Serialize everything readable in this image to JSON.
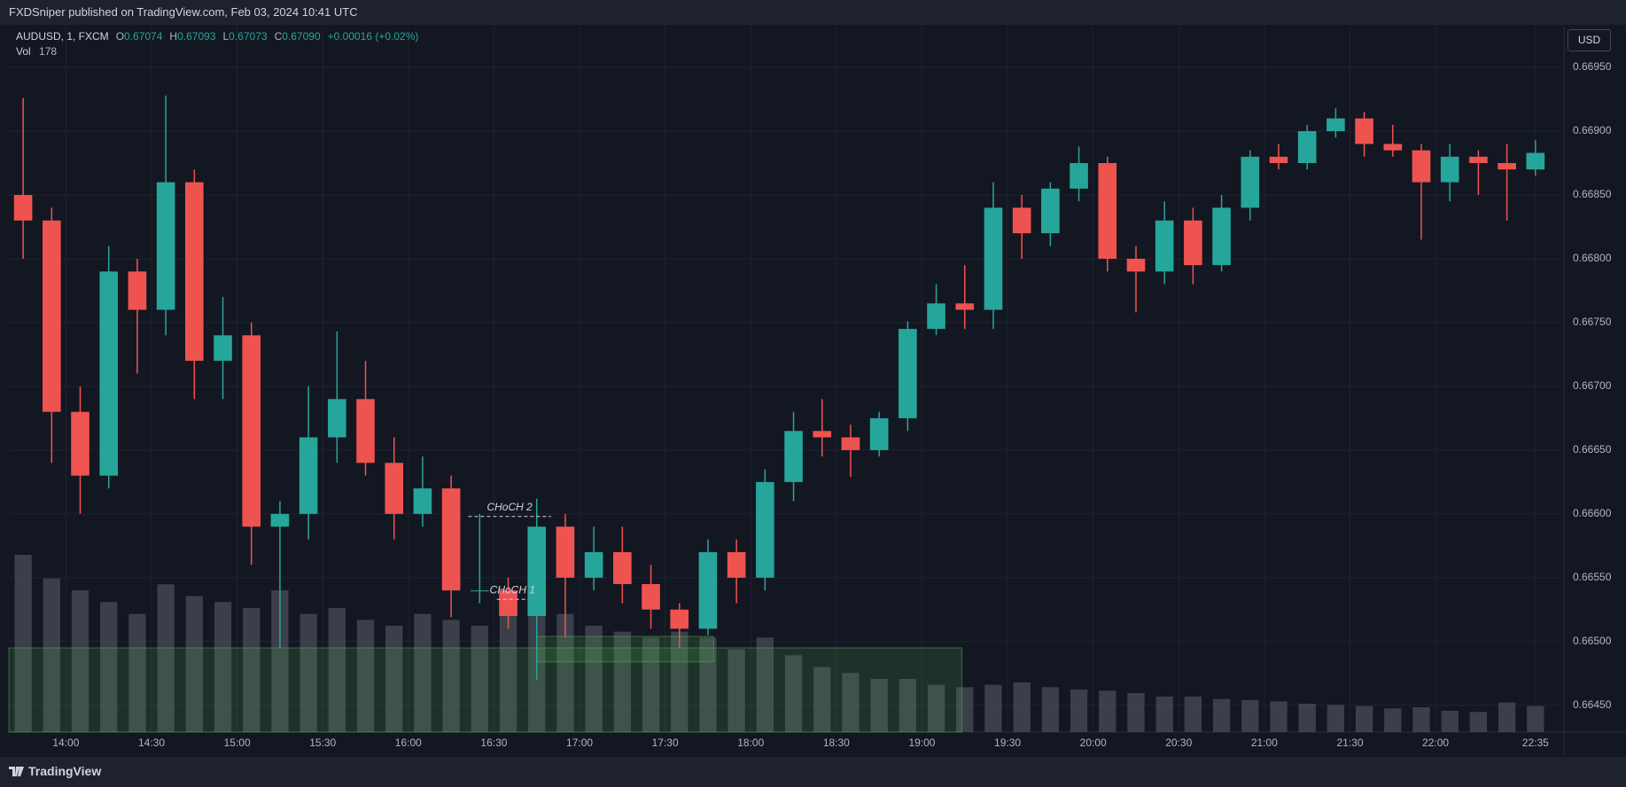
{
  "header": {
    "publisher": "FXDSniper published on TradingView.com, Feb 03, 2024 10:41 UTC"
  },
  "legend": {
    "symbol": "AUDUSD, 1, FXCM",
    "open_label": "O",
    "open": "0.67074",
    "high_label": "H",
    "high": "0.67093",
    "low_label": "L",
    "low": "0.67073",
    "close_label": "C",
    "close": "0.67090",
    "change": "+0.00016 (+0.02%)",
    "volume_label": "Vol",
    "volume": "178"
  },
  "currency": "USD",
  "footer": {
    "brand": "TradingView"
  },
  "chart_data": {
    "type": "candlestick",
    "x": [
      "13:40",
      "13:50",
      "14:00",
      "14:10",
      "14:20",
      "14:30",
      "14:40",
      "14:50",
      "15:00",
      "15:10",
      "15:20",
      "15:30",
      "15:40",
      "15:50",
      "16:00",
      "16:10",
      "16:20",
      "16:30",
      "16:40",
      "16:50",
      "17:00",
      "17:10",
      "17:20",
      "17:30",
      "17:40",
      "17:50",
      "18:00",
      "18:10",
      "18:20",
      "18:30",
      "18:40",
      "18:50",
      "19:00",
      "19:10",
      "19:20",
      "19:30",
      "19:40",
      "19:50",
      "20:00",
      "20:10",
      "20:20",
      "20:30",
      "20:40",
      "20:50",
      "21:00",
      "21:10",
      "21:20",
      "21:30",
      "21:40",
      "21:50",
      "22:00",
      "22:10",
      "22:20",
      "22:30"
    ],
    "open": [
      0.6685,
      0.6683,
      0.6668,
      0.6663,
      0.6679,
      0.6676,
      0.6686,
      0.6672,
      0.6674,
      0.6659,
      0.666,
      0.6666,
      0.6669,
      0.6664,
      0.666,
      0.6662,
      0.6654,
      0.6654,
      0.6652,
      0.6659,
      0.6655,
      0.6657,
      0.66545,
      0.66525,
      0.6651,
      0.6657,
      0.6655,
      0.66625,
      0.66665,
      0.6666,
      0.6665,
      0.66675,
      0.66745,
      0.66765,
      0.6676,
      0.6684,
      0.6682,
      0.66855,
      0.66875,
      0.668,
      0.6679,
      0.6683,
      0.66795,
      0.6684,
      0.6688,
      0.66875,
      0.669,
      0.6691,
      0.6689,
      0.66885,
      0.6686,
      0.6688,
      0.66875,
      0.6687
    ],
    "high": [
      0.66926,
      0.6684,
      0.667,
      0.6681,
      0.668,
      0.66928,
      0.6687,
      0.6677,
      0.6675,
      0.6661,
      0.667,
      0.66743,
      0.6672,
      0.6666,
      0.66645,
      0.6663,
      0.666,
      0.6655,
      0.66612,
      0.666,
      0.6659,
      0.6659,
      0.6656,
      0.6653,
      0.6658,
      0.6658,
      0.66635,
      0.6668,
      0.6669,
      0.6667,
      0.6668,
      0.66751,
      0.6678,
      0.66795,
      0.6686,
      0.6685,
      0.6686,
      0.66888,
      0.6688,
      0.6681,
      0.66845,
      0.6684,
      0.6685,
      0.66885,
      0.6689,
      0.66905,
      0.66918,
      0.66915,
      0.66905,
      0.6689,
      0.6689,
      0.66885,
      0.6689,
      0.66893
    ],
    "low": [
      0.668,
      0.6664,
      0.666,
      0.6662,
      0.6671,
      0.6674,
      0.6669,
      0.6669,
      0.6656,
      0.66495,
      0.6658,
      0.6664,
      0.6663,
      0.6658,
      0.6659,
      0.66519,
      0.6653,
      0.6651,
      0.6647,
      0.66503,
      0.6654,
      0.6653,
      0.6651,
      0.66495,
      0.66505,
      0.6653,
      0.6654,
      0.6661,
      0.66645,
      0.66629,
      0.66645,
      0.66665,
      0.6674,
      0.66745,
      0.66745,
      0.668,
      0.6681,
      0.66845,
      0.6679,
      0.66758,
      0.6678,
      0.6678,
      0.6679,
      0.6683,
      0.6687,
      0.6687,
      0.66895,
      0.6688,
      0.6688,
      0.66815,
      0.66845,
      0.6685,
      0.6683,
      0.66865
    ],
    "close": [
      0.6683,
      0.6668,
      0.6663,
      0.6679,
      0.6676,
      0.6686,
      0.6672,
      0.6674,
      0.6659,
      0.666,
      0.6666,
      0.6669,
      0.6664,
      0.666,
      0.6662,
      0.6654,
      0.6654,
      0.6652,
      0.6659,
      0.6655,
      0.6657,
      0.66545,
      0.66525,
      0.6651,
      0.6657,
      0.6655,
      0.66625,
      0.66665,
      0.6666,
      0.6665,
      0.66675,
      0.66745,
      0.66765,
      0.6676,
      0.6684,
      0.6682,
      0.66855,
      0.66875,
      0.668,
      0.6679,
      0.6683,
      0.66795,
      0.6684,
      0.6688,
      0.66875,
      0.669,
      0.6691,
      0.6689,
      0.66885,
      0.6686,
      0.6688,
      0.66875,
      0.6687,
      0.66883
    ],
    "volume": [
      1500,
      1300,
      1200,
      1100,
      1000,
      1250,
      1150,
      1100,
      1050,
      1200,
      1000,
      1050,
      950,
      900,
      1000,
      950,
      900,
      1000,
      1150,
      1000,
      900,
      850,
      800,
      850,
      800,
      700,
      800,
      650,
      550,
      500,
      450,
      450,
      400,
      380,
      400,
      420,
      380,
      360,
      350,
      330,
      300,
      300,
      280,
      270,
      260,
      240,
      230,
      220,
      200,
      210,
      180,
      170,
      250,
      220
    ],
    "up_color": "#26a69a",
    "down_color": "#ef5350",
    "volume_color": "#5d606b",
    "xlim": [
      "13:40",
      "22:45"
    ],
    "xticks": [
      "14:00",
      "14:30",
      "15:00",
      "15:30",
      "16:00",
      "16:30",
      "17:00",
      "17:30",
      "18:00",
      "18:30",
      "19:00",
      "19:30",
      "20:00",
      "20:30",
      "21:00",
      "21:30",
      "22:00",
      "22:35"
    ],
    "ylim": [
      0.66429,
      0.66982
    ],
    "yticks": [
      {
        "value": 0.6645,
        "label": "0.66450"
      },
      {
        "value": 0.665,
        "label": "0.66500"
      },
      {
        "value": 0.6655,
        "label": "0.66550"
      },
      {
        "value": 0.666,
        "label": "0.66600"
      },
      {
        "value": 0.6665,
        "label": "0.66650"
      },
      {
        "value": 0.667,
        "label": "0.66700"
      },
      {
        "value": 0.6675,
        "label": "0.66750"
      },
      {
        "value": 0.668,
        "label": "0.66800"
      },
      {
        "value": 0.6685,
        "label": "0.66850"
      },
      {
        "value": 0.669,
        "label": "0.66900"
      },
      {
        "value": 0.6695,
        "label": "0.66950"
      }
    ],
    "grid": true,
    "zones": [
      {
        "x": [
          "13:40",
          "19:14"
        ],
        "y": [
          0.66429,
          0.66495
        ]
      },
      {
        "x": [
          "16:45",
          "17:47"
        ],
        "y": [
          0.66484,
          0.66504
        ]
      }
    ],
    "annotations": [
      {
        "text": "CHoCH 2",
        "x": [
          "16:21",
          "16:50"
        ],
        "y": 0.66598
      },
      {
        "text": "CHoCH 1",
        "x": [
          "16:31",
          "16:42"
        ],
        "y": 0.66533
      }
    ]
  }
}
